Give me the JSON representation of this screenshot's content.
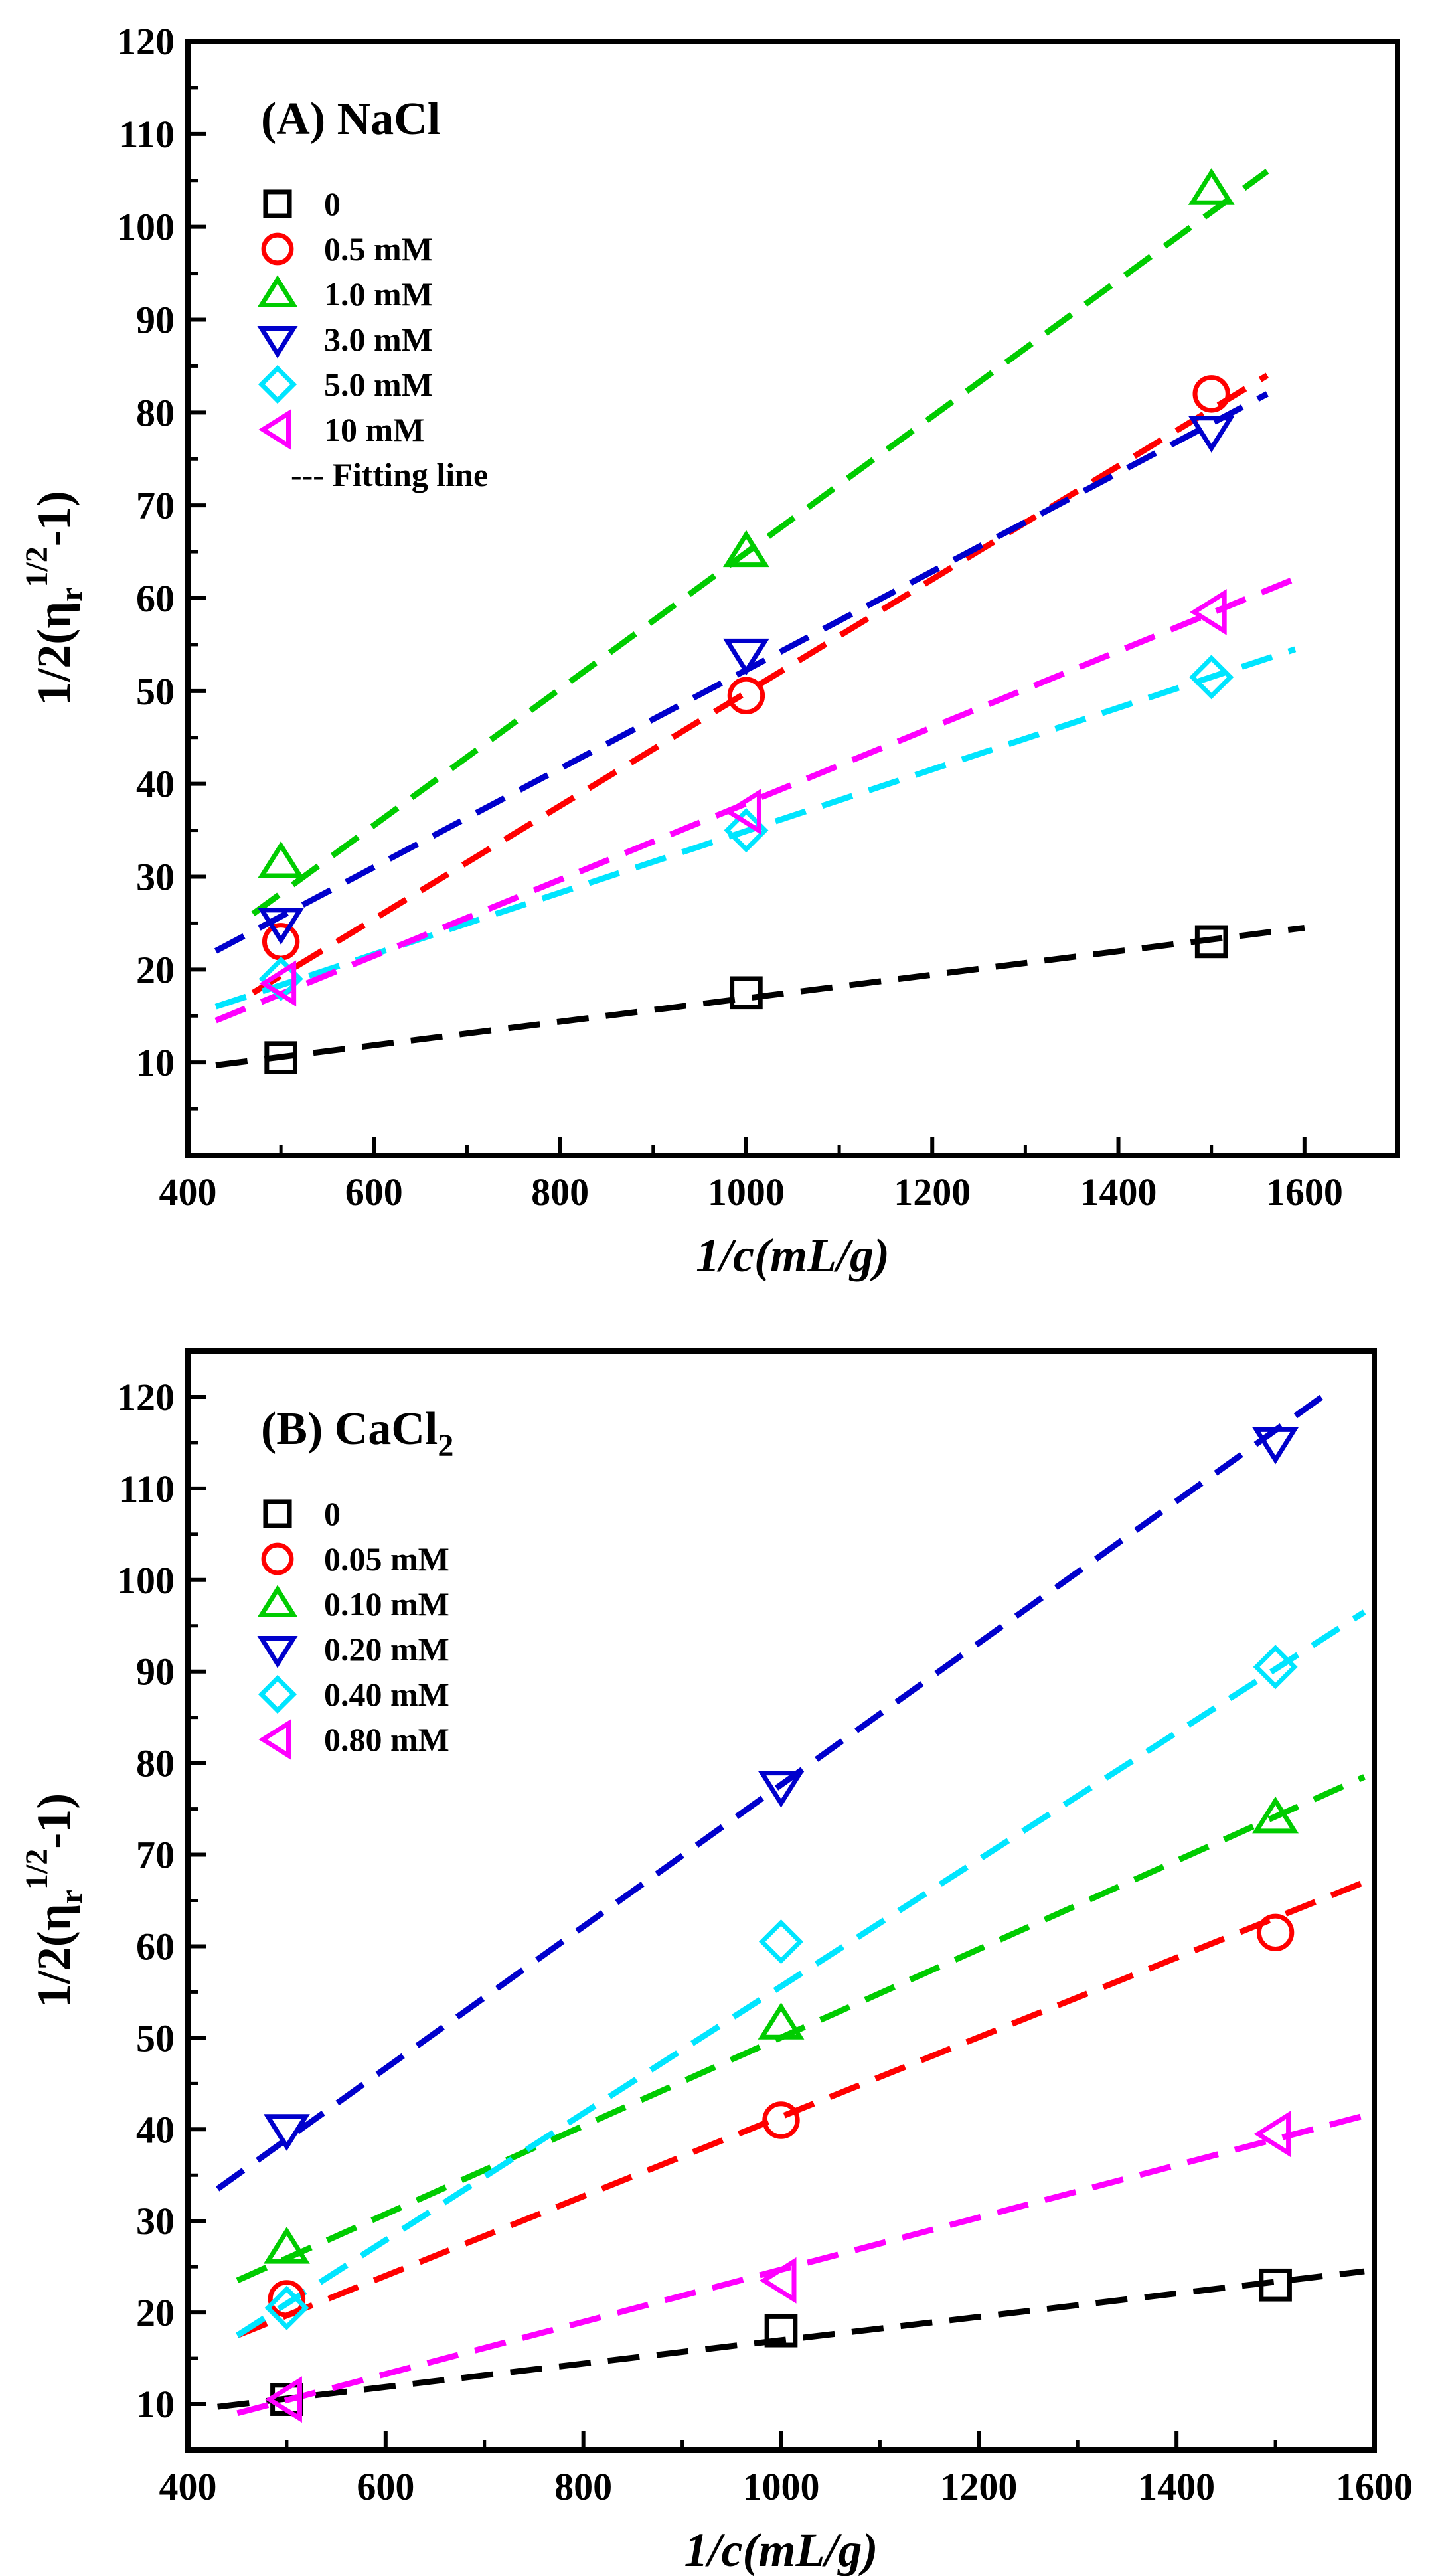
{
  "chart_data": [
    {
      "panel": "A",
      "type": "scatter",
      "title_lines": [
        "(A) NaCl"
      ],
      "title_sub": "",
      "xlabel": "1/c(mL/g)",
      "ylabel": {
        "main": "1/2(η",
        "sub": "r",
        "sup": "1/2",
        "tail": "-1)"
      },
      "xlim": [
        400,
        1700
      ],
      "ylim": [
        0,
        120
      ],
      "xticks": [
        400,
        600,
        800,
        1000,
        1200,
        1400,
        1600
      ],
      "yticks": [
        10,
        20,
        30,
        40,
        50,
        60,
        70,
        80,
        90,
        100,
        110,
        120
      ],
      "legend_position": "top-left",
      "fit_legend_label": "--- Fitting line",
      "series": [
        {
          "name": "0",
          "marker": "square",
          "color": "#000000",
          "x": [
            500,
            1000,
            1500
          ],
          "y": [
            10.5,
            17.5,
            23
          ],
          "fit": {
            "x": [
              430,
              1600
            ],
            "y": [
              9.7,
              24.5
            ]
          }
        },
        {
          "name": "0.5 mM",
          "marker": "circle",
          "color": "#ff0000",
          "x": [
            500,
            1000,
            1500
          ],
          "y": [
            23,
            49.5,
            82
          ],
          "fit": {
            "x": [
              470,
              1560
            ],
            "y": [
              17.5,
              84
            ]
          }
        },
        {
          "name": "1.0 mM",
          "marker": "triangle-up",
          "color": "#00cc00",
          "x": [
            500,
            1000,
            1500
          ],
          "y": [
            31.5,
            65,
            104
          ],
          "fit": {
            "x": [
              470,
              1560
            ],
            "y": [
              26,
              106
            ]
          }
        },
        {
          "name": "3.0 mM",
          "marker": "triangle-down",
          "color": "#0000cc",
          "x": [
            500,
            1000,
            1500
          ],
          "y": [
            25,
            54,
            78
          ],
          "fit": {
            "x": [
              430,
              1560
            ],
            "y": [
              22,
              82
            ]
          }
        },
        {
          "name": "5.0 mM",
          "marker": "diamond",
          "color": "#00e5ff",
          "x": [
            500,
            1000,
            1500
          ],
          "y": [
            19,
            35,
            51.5
          ],
          "fit": {
            "x": [
              430,
              1590
            ],
            "y": [
              16,
              54.5
            ]
          }
        },
        {
          "name": "10  mM",
          "marker": "triangle-left",
          "color": "#ff00ff",
          "x": [
            500,
            1000,
            1500
          ],
          "y": [
            18.5,
            37,
            58.5
          ],
          "fit": {
            "x": [
              430,
              1600
            ],
            "y": [
              14.5,
              62.5
            ]
          }
        }
      ]
    },
    {
      "panel": "B",
      "type": "scatter",
      "title_lines": [
        "(B) CaCl"
      ],
      "title_sub": "2",
      "xlabel": "1/c(mL/g)",
      "ylabel": {
        "main": "1/2(η",
        "sub": "r",
        "sup": "1/2",
        "tail": "-1)"
      },
      "xlim": [
        400,
        1600
      ],
      "ylim": [
        5,
        125
      ],
      "xticks": [
        400,
        600,
        800,
        1000,
        1200,
        1400,
        1600
      ],
      "yticks": [
        10,
        20,
        30,
        40,
        50,
        60,
        70,
        80,
        90,
        100,
        110,
        120
      ],
      "legend_position": "top-left",
      "fit_legend_label": "",
      "series": [
        {
          "name": "0",
          "marker": "square",
          "color": "#000000",
          "x": [
            500,
            1000,
            1500
          ],
          "y": [
            10.5,
            18,
            23
          ],
          "fit": {
            "x": [
              430,
              1590
            ],
            "y": [
              9.7,
              24.5
            ]
          }
        },
        {
          "name": "0.05 mM",
          "marker": "circle",
          "color": "#ff0000",
          "x": [
            500,
            1000,
            1500
          ],
          "y": [
            21.5,
            41,
            61.5
          ],
          "fit": {
            "x": [
              450,
              1590
            ],
            "y": [
              17.5,
              67
            ]
          }
        },
        {
          "name": "0.10 mM",
          "marker": "triangle-up",
          "color": "#00cc00",
          "x": [
            500,
            1000,
            1500
          ],
          "y": [
            27,
            51.5,
            74
          ],
          "fit": {
            "x": [
              450,
              1590
            ],
            "y": [
              23.5,
              78.5
            ]
          }
        },
        {
          "name": "0.20 mM",
          "marker": "triangle-down",
          "color": "#0000cc",
          "x": [
            500,
            1000,
            1500
          ],
          "y": [
            40,
            77.5,
            115
          ],
          "fit": {
            "x": [
              430,
              1560
            ],
            "y": [
              33.5,
              121
            ]
          }
        },
        {
          "name": "0.40 mM",
          "marker": "diamond",
          "color": "#00e5ff",
          "x": [
            500,
            1000,
            1500
          ],
          "y": [
            20.5,
            60.5,
            90.5
          ],
          "fit": {
            "x": [
              450,
              1590
            ],
            "y": [
              17.5,
              96.5
            ]
          }
        },
        {
          "name": "0.80 mM",
          "marker": "triangle-left",
          "color": "#ff00ff",
          "x": [
            500,
            1000,
            1500
          ],
          "y": [
            10.5,
            23.5,
            39.5
          ],
          "fit": {
            "x": [
              450,
              1590
            ],
            "y": [
              9,
              41.5
            ]
          }
        }
      ]
    }
  ]
}
